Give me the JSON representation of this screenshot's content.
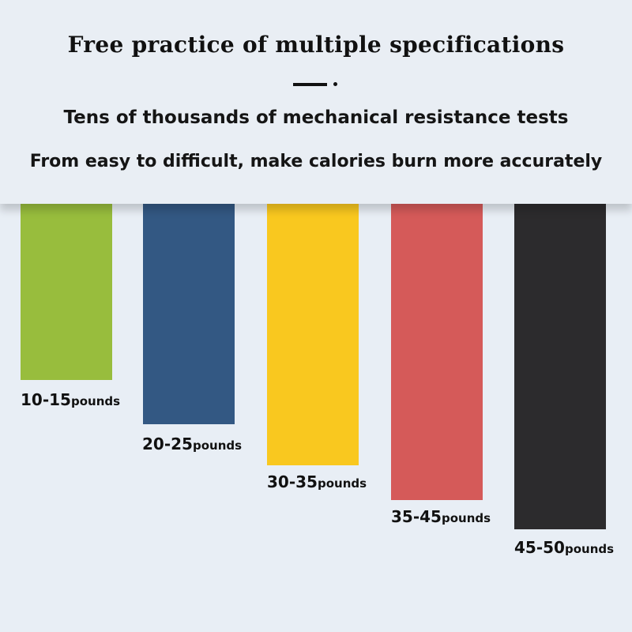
{
  "header": {
    "title": "Free practice of multiple specifications",
    "line1": "Tens of thousands of mechanical resistance tests",
    "line2": "From easy to difficult, make calories burn more accurately"
  },
  "bands": [
    {
      "range": "10-15",
      "unit": "pounds",
      "color": "#98bd3d"
    },
    {
      "range": "20-25",
      "unit": "pounds",
      "color": "#335883"
    },
    {
      "range": "30-35",
      "unit": "pounds",
      "color": "#f9c81f"
    },
    {
      "range": "35-45",
      "unit": "pounds",
      "color": "#d55a59"
    },
    {
      "range": "45-50",
      "unit": "pounds",
      "color": "#2c2b2d"
    }
  ]
}
